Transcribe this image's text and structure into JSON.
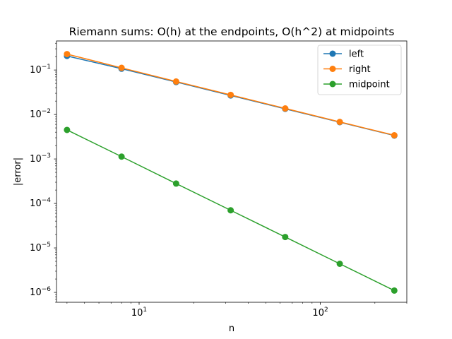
{
  "chart_data": {
    "type": "line",
    "title": "Riemann sums: O(h) at the endpoints, O(h^2) at midpoints",
    "xlabel": "n",
    "ylabel": "|error|",
    "xscale": "log",
    "yscale": "log",
    "xlim": [
      3.5,
      300
    ],
    "ylim": [
      6e-07,
      0.45
    ],
    "grid": false,
    "legend_position": "top-right",
    "x": [
      4,
      8,
      16,
      32,
      64,
      128,
      256
    ],
    "series": [
      {
        "name": "left",
        "color": "#1f77b4",
        "values": [
          0.207,
          0.107,
          0.0537,
          0.0268,
          0.0134,
          0.00672,
          0.00336
        ]
      },
      {
        "name": "right",
        "color": "#ff7f0e",
        "values": [
          0.228,
          0.112,
          0.0552,
          0.0276,
          0.0137,
          0.00681,
          0.00341
        ]
      },
      {
        "name": "midpoint",
        "color": "#2ca02c",
        "values": [
          0.0045,
          0.00113,
          0.00028,
          7.02e-05,
          1.76e-05,
          4.4e-06,
          1.1e-06
        ]
      }
    ],
    "x_ticks": [
      {
        "value": 10,
        "base": "10",
        "exp": "1"
      },
      {
        "value": 100,
        "base": "10",
        "exp": "2"
      }
    ],
    "y_ticks": [
      {
        "value": 0.1,
        "base": "10",
        "exp": "−1"
      },
      {
        "value": 0.01,
        "base": "10",
        "exp": "−2"
      },
      {
        "value": 0.001,
        "base": "10",
        "exp": "−3"
      },
      {
        "value": 0.0001,
        "base": "10",
        "exp": "−4"
      },
      {
        "value": 1e-05,
        "base": "10",
        "exp": "−5"
      },
      {
        "value": 1e-06,
        "base": "10",
        "exp": "−6"
      }
    ]
  }
}
